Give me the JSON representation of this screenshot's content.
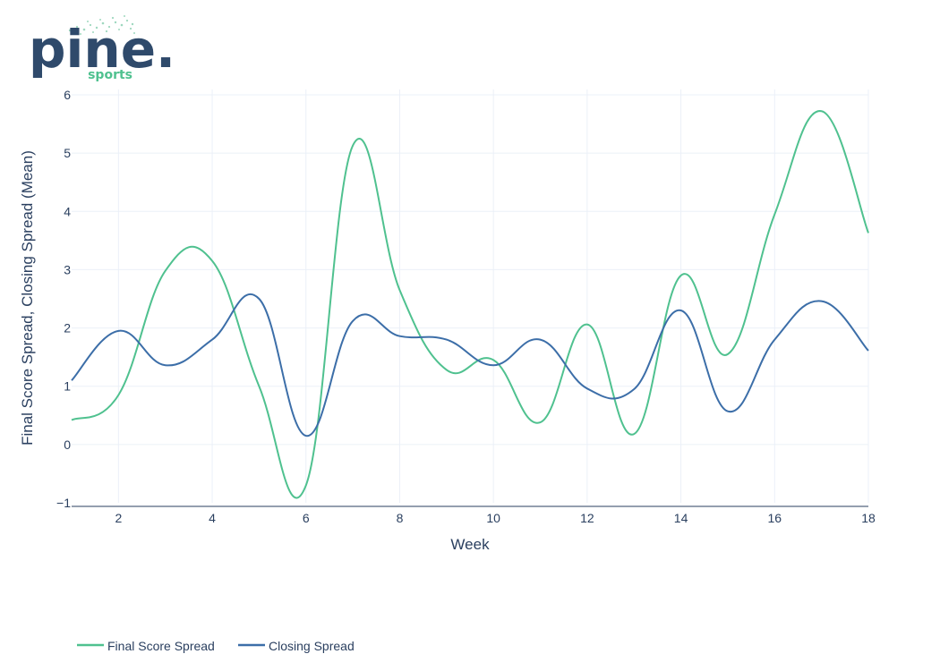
{
  "logo": {
    "main": "pine.",
    "sub": "sports",
    "main_color": "#2f4a6b",
    "sub_color": "#4fc18f"
  },
  "chart_data": {
    "type": "line",
    "title": "",
    "xlabel": "Week",
    "ylabel": "Final Score Spread, Closing Spread (Mean)",
    "xlim": [
      1,
      18
    ],
    "ylim": [
      -1,
      6
    ],
    "x_ticks": [
      2,
      4,
      6,
      8,
      10,
      12,
      14,
      16,
      18
    ],
    "y_ticks": [
      -1,
      0,
      1,
      2,
      3,
      4,
      5,
      6
    ],
    "y_tick_labels": [
      "−1",
      "0",
      "1",
      "2",
      "3",
      "4",
      "5",
      "6"
    ],
    "grid": true,
    "legend_position": "bottom-left",
    "x": [
      1,
      2,
      3,
      4,
      5,
      6,
      7,
      8,
      9,
      10,
      11,
      12,
      13,
      14,
      15,
      16,
      17,
      18
    ],
    "series": [
      {
        "name": "Final Score Spread",
        "color": "#4fc18f",
        "values": [
          0.42,
          0.85,
          2.98,
          3.15,
          1.0,
          -0.7,
          5.13,
          2.65,
          1.28,
          1.45,
          0.38,
          2.06,
          0.18,
          2.9,
          1.55,
          3.95,
          5.72,
          3.63
        ]
      },
      {
        "name": "Closing Spread",
        "color": "#3c6ea8",
        "values": [
          1.1,
          1.95,
          1.36,
          1.8,
          2.5,
          0.15,
          2.12,
          1.86,
          1.8,
          1.36,
          1.8,
          0.96,
          0.95,
          2.3,
          0.57,
          1.8,
          2.46,
          1.61
        ]
      }
    ]
  }
}
